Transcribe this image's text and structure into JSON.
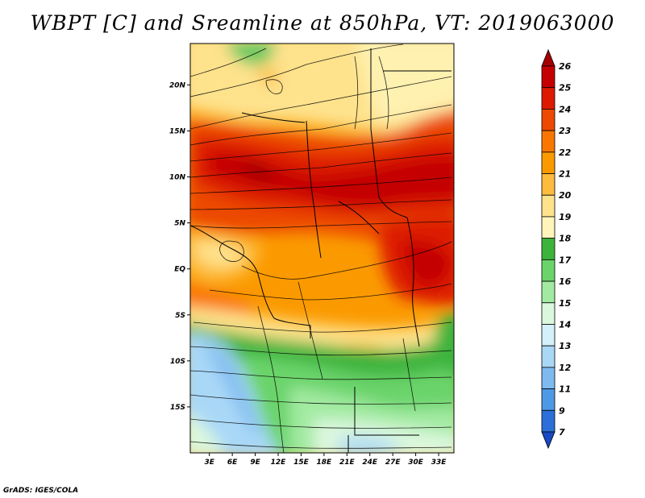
{
  "title": "WBPT [C] and Sreamline at 850hPa, VT: 2019063000",
  "credit": "GrADS: IGES/COLA",
  "map": {
    "lat_labels": [
      {
        "label": "20N",
        "lat": 20
      },
      {
        "label": "15N",
        "lat": 15
      },
      {
        "label": "10N",
        "lat": 10
      },
      {
        "label": "5N",
        "lat": 5
      },
      {
        "label": "EQ",
        "lat": 0
      },
      {
        "label": "5S",
        "lat": -5
      },
      {
        "label": "10S",
        "lat": -10
      },
      {
        "label": "15S",
        "lat": -15
      }
    ],
    "lon_labels": [
      {
        "label": "3E",
        "lon": 3
      },
      {
        "label": "6E",
        "lon": 6
      },
      {
        "label": "9E",
        "lon": 9
      },
      {
        "label": "12E",
        "lon": 12
      },
      {
        "label": "15E",
        "lon": 15
      },
      {
        "label": "18E",
        "lon": 18
      },
      {
        "label": "21E",
        "lon": 21
      },
      {
        "label": "24E",
        "lon": 24
      },
      {
        "label": "27E",
        "lon": 27
      },
      {
        "label": "30E",
        "lon": 30
      },
      {
        "label": "33E",
        "lon": 33
      }
    ],
    "lon_range": [
      0.5,
      35
    ],
    "lat_range": [
      -20,
      24.5
    ]
  },
  "colorbar": {
    "levels": [
      "26",
      "25",
      "24",
      "23",
      "22",
      "21",
      "20",
      "19",
      "18",
      "17",
      "16",
      "15",
      "14",
      "13",
      "12",
      "11",
      "9",
      "7"
    ],
    "colors": [
      "#a50000",
      "#c40000",
      "#dd1a00",
      "#ec4a00",
      "#f97700",
      "#fb9a00",
      "#fdbc3e",
      "#fee28c",
      "#fff5bb",
      "#3cb43c",
      "#6ad46a",
      "#a2eaa2",
      "#dbf7dd",
      "#d4f0fa",
      "#a9d8f7",
      "#7ebaf0",
      "#4d99e6",
      "#2c6fd8",
      "#1848c3"
    ]
  }
}
